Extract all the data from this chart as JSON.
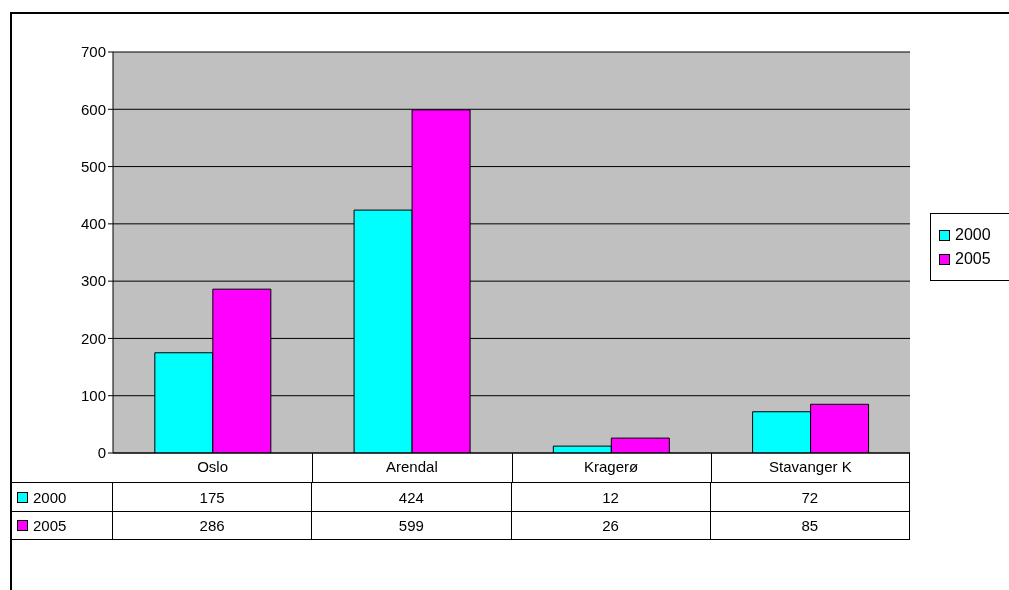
{
  "chart_data": {
    "type": "bar",
    "categories": [
      "Oslo",
      "Arendal",
      "Kragerø",
      "Stavanger K"
    ],
    "series": [
      {
        "name": "2000",
        "color": "#00ffff",
        "values": [
          175,
          424,
          12,
          72
        ]
      },
      {
        "name": "2005",
        "color": "#ff00ff",
        "values": [
          286,
          599,
          26,
          85
        ]
      }
    ],
    "ylim": [
      0,
      700
    ],
    "yticks": [
      0,
      100,
      200,
      300,
      400,
      500,
      600,
      700
    ],
    "grid": "y",
    "legend": "right",
    "data_labels": true
  }
}
